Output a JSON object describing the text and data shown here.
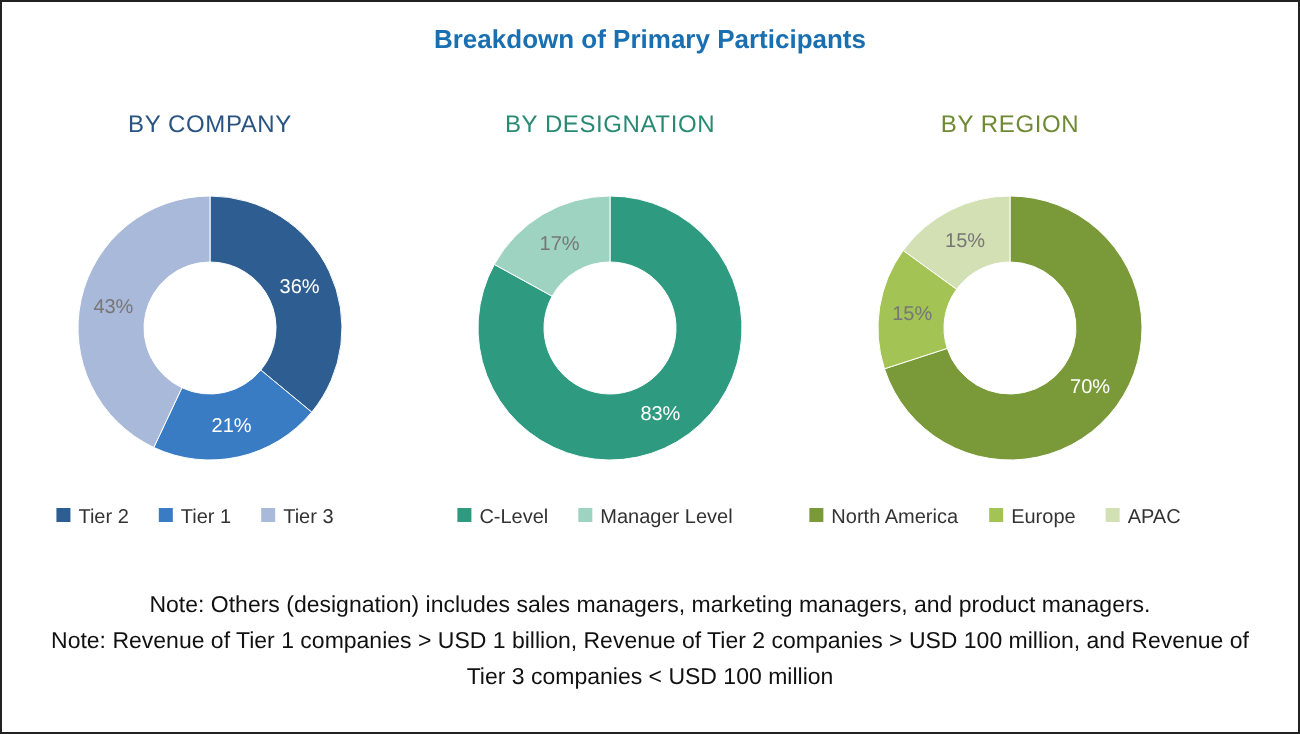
{
  "chart_data": [
    {
      "type": "donut",
      "subtitle": "BY COMPANY",
      "categories": [
        "Tier 2",
        "Tier 1",
        "Tier 3"
      ],
      "values": [
        36,
        21,
        43
      ],
      "colors": [
        "#2e5e91",
        "#3a7cc4",
        "#a9b9d9"
      ],
      "value_labels": [
        "36%",
        "21%",
        "43%"
      ],
      "legend": "bottom",
      "annotations": [
        "Note: Others (designation) includes sales managers, marketing managers, and product managers.",
        "Note: Revenue of Tier 1 companies > USD 1 billion, Revenue of Tier 2 companies > USD 100 million, and Revenue of Tier 3 companies < USD 100 million"
      ]
    },
    {
      "type": "donut",
      "title": "Breakdown of Primary Participants",
      "subtitle": "BY DESIGNATION",
      "categories": [
        "C-Level",
        "Manager Level"
      ],
      "values": [
        83,
        17
      ],
      "colors": [
        "#2e9a80",
        "#9ed3c2"
      ],
      "value_labels": [
        "83%",
        "17%"
      ],
      "legend": "bottom"
    },
    {
      "type": "donut",
      "subtitle": "BY REGION",
      "categories": [
        "North America",
        "Europe",
        "APAC"
      ],
      "values": [
        70,
        15,
        15
      ],
      "colors": [
        "#7a9a3a",
        "#a3c355",
        "#d3e0b3"
      ],
      "value_labels": [
        "70%",
        "15%",
        "15%"
      ],
      "legend": "bottom"
    }
  ]
}
